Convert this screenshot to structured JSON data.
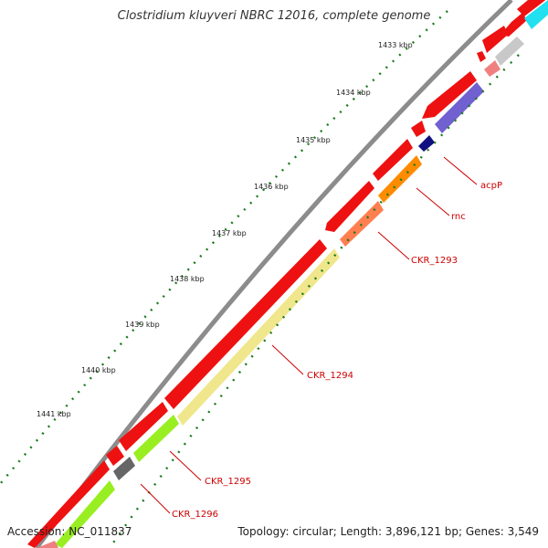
{
  "title": "Clostridium kluyveri NBRC 12016, complete genome",
  "accession": "Accession: NC_011837",
  "summary": "Topology: circular; Length: 3,896,121 bp; Genes: 3,549",
  "kbp_labels": [
    "1433 kbp",
    "1434 kbp",
    "1435 kbp",
    "1436 kbp",
    "1437 kbp",
    "1438 kbp",
    "1439 kbp",
    "1440 kbp",
    "1441 kbp"
  ],
  "gene_labels": {
    "acpP": "acpP",
    "rnc": "rnc",
    "ckr1293": "CKR_1293",
    "ckr1294": "CKR_1294",
    "ckr1295": "CKR_1295",
    "ckr1296": "CKR_1296"
  },
  "colors": {
    "backbone": "#8c8c8c",
    "forward_gene": "#ee1111",
    "feature_label": "#cc0000",
    "tick_small": "#1a7a1a",
    "tick_large": "#1a7a1a",
    "cyan_feature": "#22e0f0",
    "grey_feature": "#c8c8c8",
    "pink_feature": "#f08080",
    "purple_feature": "#7060d0",
    "navy_feature": "#101080",
    "orange_feature": "#ff8c00",
    "salmon_feature": "#ff7f50",
    "khaki_feature": "#f0e68c",
    "lime_feature": "#99ee22",
    "dark_grey_feature": "#666666"
  }
}
